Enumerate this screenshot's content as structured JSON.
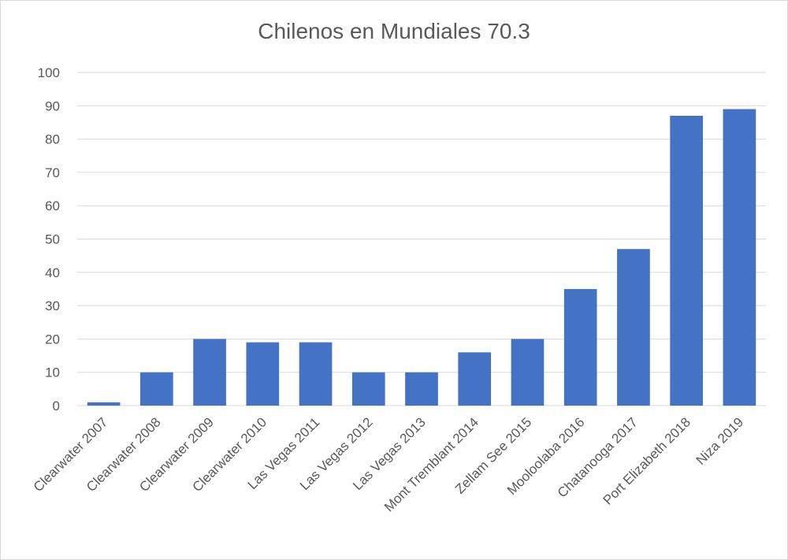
{
  "chart_data": {
    "type": "bar",
    "title": "Chilenos en Mundiales 70.3",
    "categories": [
      "Clearwater 2007",
      "Clearwater 2008",
      "Clearwater 2009",
      "Clearwater 2010",
      "Las Vegas 2011",
      "Las Vegas 2012",
      "Las Vegas 2013",
      "Mont Tremblant 2014",
      "Zellam See 2015",
      "Mooloolaba 2016",
      "Chatanooga 2017",
      "Port Elizabeth 2018",
      "Niza 2019"
    ],
    "values": [
      1,
      10,
      20,
      19,
      19,
      10,
      10,
      16,
      20,
      35,
      47,
      87,
      89
    ],
    "xlabel": "",
    "ylabel": "",
    "ylim": [
      0,
      100
    ],
    "yticks": [
      "0",
      "10",
      "20",
      "30",
      "40",
      "50",
      "60",
      "70",
      "80",
      "90",
      "100"
    ],
    "grid": true,
    "legend": "none",
    "colors": {
      "bar": "#4472C4",
      "grid": "#d9d9d9",
      "text": "#595959"
    }
  }
}
